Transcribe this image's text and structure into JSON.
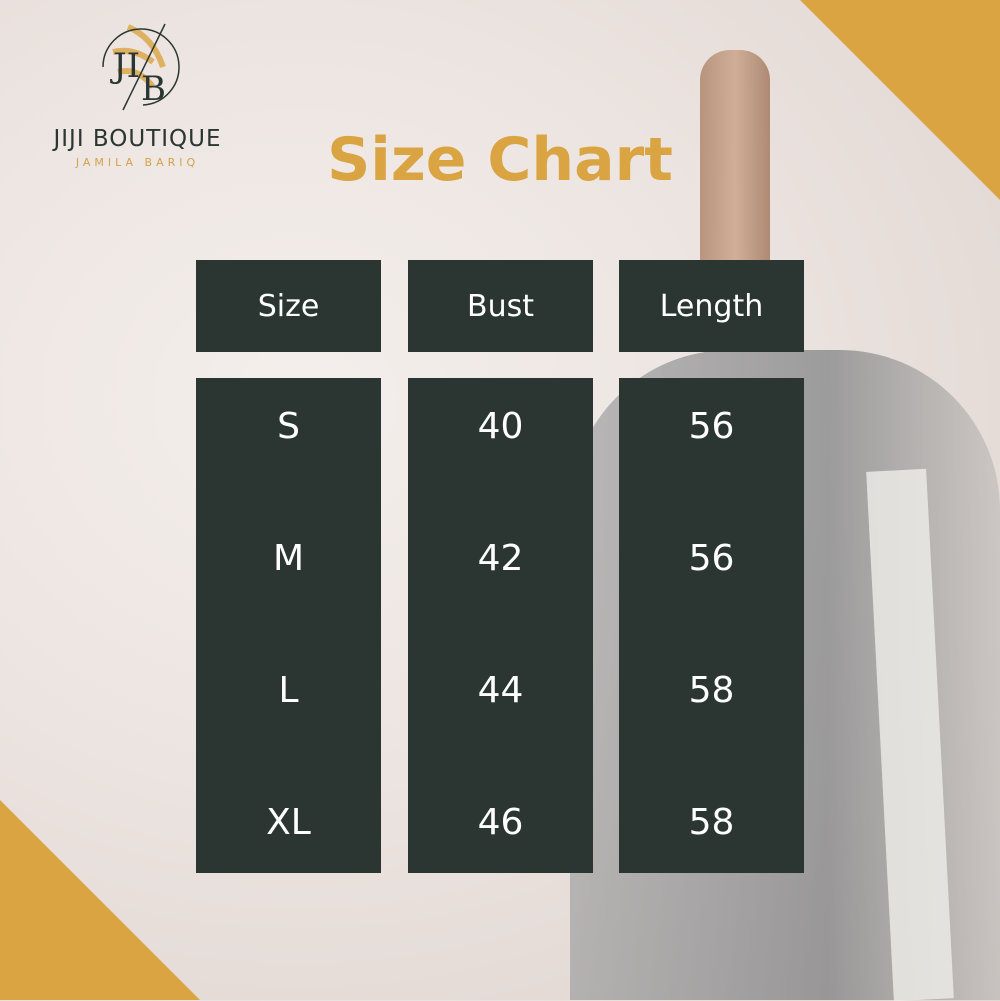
{
  "brand": {
    "name": "JIJI BOUTIQUE",
    "tagline": "JAMILA BARIQ",
    "monogram": "JB"
  },
  "title": "Size Chart",
  "colors": {
    "gold": "#d9a441",
    "panel": "#2b3633",
    "text": "#ffffff"
  },
  "chart_data": {
    "type": "table",
    "columns": [
      "Size",
      "Bust",
      "Length"
    ],
    "rows": [
      [
        "S",
        "40",
        "56"
      ],
      [
        "M",
        "42",
        "56"
      ],
      [
        "L",
        "44",
        "58"
      ],
      [
        "XL",
        "46",
        "58"
      ]
    ]
  }
}
